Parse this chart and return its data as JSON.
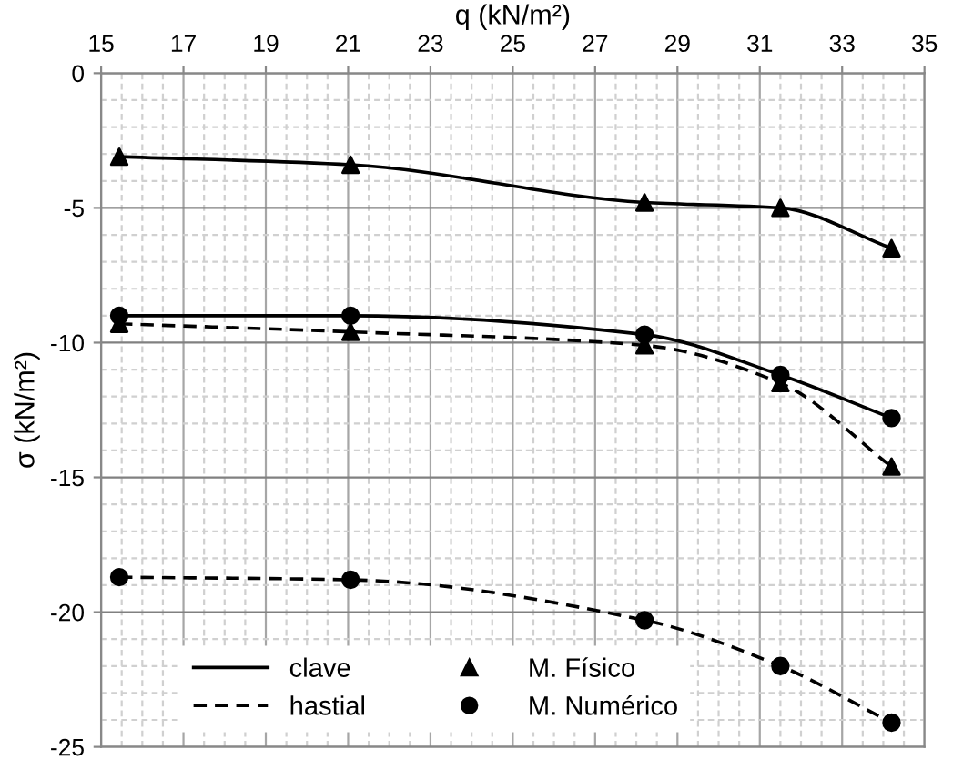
{
  "chart_data": {
    "type": "line",
    "xlabel": "q (kN/m²)",
    "ylabel": "σ (kN/m²)",
    "x": [
      15.44,
      21.06,
      28.2,
      31.5,
      34.2
    ],
    "series": [
      {
        "name": "clave",
        "color": "#000000",
        "line_style": "solid",
        "marker": "none",
        "values": [
          -3.1,
          -3.4,
          -4.8,
          -5.0,
          -6.5
        ]
      },
      {
        "color": "#000000",
        "line_style": "solid",
        "marker": "none",
        "values": [
          -9.0,
          -9.0,
          -9.7,
          -11.2,
          -12.8
        ]
      },
      {
        "name": "hastial",
        "color": "#000000",
        "line_style": "dashed",
        "marker": "none",
        "values": [
          -9.3,
          -9.6,
          -10.1,
          -11.5,
          -14.6
        ]
      },
      {
        "color": "#000000",
        "line_style": "dashed",
        "marker": "none",
        "values": [
          -18.7,
          -18.8,
          -20.3,
          -22.0,
          -24.1
        ]
      },
      {
        "name": "M. Físico",
        "type": "scatter",
        "color": "#000000",
        "marker": "triangle",
        "x": [
          15.44,
          21.06,
          28.2,
          31.5,
          34.2,
          15.44,
          21.06,
          28.2,
          31.5,
          34.2
        ],
        "values": [
          -3.1,
          -3.4,
          -4.8,
          -5.0,
          -6.5,
          -9.3,
          -9.6,
          -10.1,
          -11.5,
          -14.6
        ]
      },
      {
        "name": "M. Numérico",
        "type": "scatter",
        "color": "#000000",
        "marker": "circle",
        "x": [
          15.44,
          21.06,
          28.2,
          31.5,
          34.2,
          15.44,
          21.06,
          28.2,
          31.5,
          34.2
        ],
        "values": [
          -9.0,
          -9.0,
          -9.7,
          -11.2,
          -12.8,
          -18.7,
          -18.8,
          -20.3,
          -22.0,
          -24.1
        ]
      }
    ],
    "xlim": [
      15,
      35
    ],
    "xticks": [
      15,
      {
        "value": 15.5,
        "label": null
      },
      {
        "value": 16,
        "label": null
      },
      {
        "value": 16.5,
        "label": null
      },
      17,
      {
        "value": 17.5,
        "label": null
      },
      {
        "value": 18,
        "label": null
      },
      {
        "value": 18.5,
        "label": null
      },
      19,
      {
        "value": 19.5,
        "label": null
      },
      {
        "value": 20,
        "label": null
      },
      {
        "value": 20.5,
        "label": null
      },
      21,
      {
        "value": 21.5,
        "label": null
      },
      {
        "value": 22,
        "label": null
      },
      {
        "value": 22.5,
        "label": null
      },
      23,
      {
        "value": 23.5,
        "label": null
      },
      {
        "value": 24,
        "label": null
      },
      {
        "value": 24.5,
        "label": null
      },
      25,
      {
        "value": 25.5,
        "label": null
      },
      {
        "value": 26,
        "label": null
      },
      {
        "value": 26.5,
        "label": null
      },
      27,
      {
        "value": 27.5,
        "label": null
      },
      {
        "value": 28,
        "label": null
      },
      {
        "value": 28.5,
        "label": null
      },
      29,
      {
        "value": 29.5,
        "label": null
      },
      {
        "value": 30,
        "label": null
      },
      {
        "value": 30.5,
        "label": null
      },
      31,
      {
        "value": 31.5,
        "label": null
      },
      {
        "value": 32,
        "label": null
      },
      {
        "value": 32.5,
        "label": null
      },
      33,
      {
        "value": 33.5,
        "label": null
      },
      {
        "value": 34,
        "label": null
      },
      {
        "value": 34.5,
        "label": null
      },
      35
    ],
    "ylim": [
      -25,
      0
    ],
    "yticks": [
      0,
      {
        "value": -1,
        "label": null
      },
      {
        "value": -2,
        "label": null
      },
      {
        "value": -3,
        "label": null
      },
      {
        "value": -4,
        "label": null
      },
      -5,
      {
        "value": -6,
        "label": null
      },
      {
        "value": -7,
        "label": null
      },
      {
        "value": -8,
        "label": null
      },
      {
        "value": -9,
        "label": null
      },
      -10,
      {
        "value": -11,
        "label": null
      },
      {
        "value": -12,
        "label": null
      },
      {
        "value": -13,
        "label": null
      },
      {
        "value": -14,
        "label": null
      },
      -15,
      {
        "value": -16,
        "label": null
      },
      {
        "value": -17,
        "label": null
      },
      {
        "value": -18,
        "label": null
      },
      {
        "value": -19,
        "label": null
      },
      -20,
      {
        "value": -21,
        "label": null
      },
      {
        "value": -22,
        "label": null
      },
      {
        "value": -23,
        "label": null
      },
      {
        "value": -24,
        "label": null
      },
      -25
    ],
    "grid": true,
    "legend": "bottom left"
  }
}
